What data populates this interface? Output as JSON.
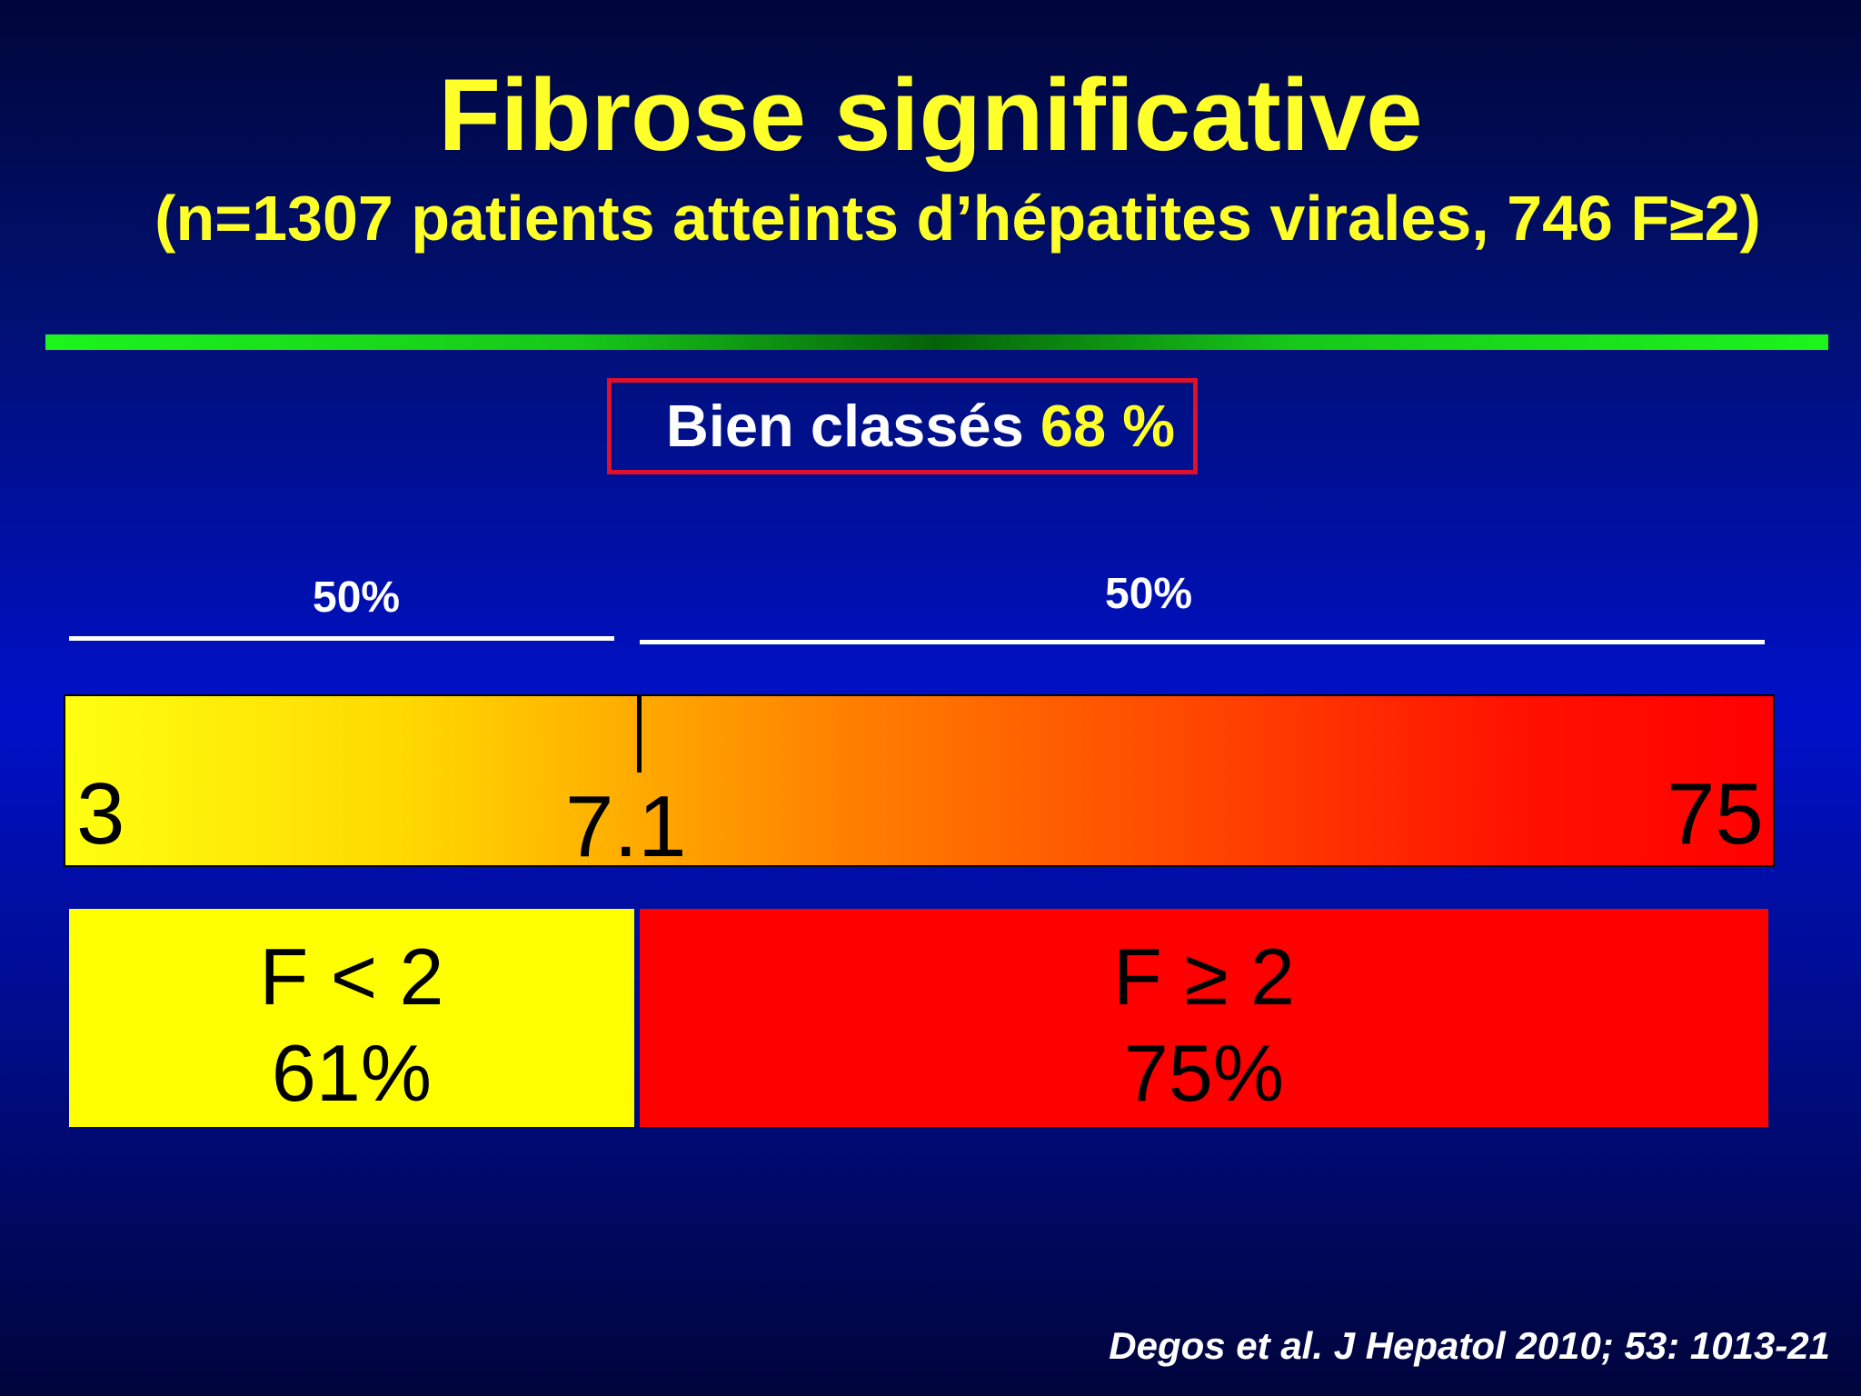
{
  "slide": {
    "title": "Fibrose significative",
    "subtitle": "(n=1307 patients atteints d’hépatites virales, 746 F≥2)",
    "classified": {
      "label": "Bien classés",
      "value": "68 %"
    },
    "split_labels": [
      "50%",
      "50%"
    ],
    "scale": {
      "min": "3",
      "cutoff": "7.1",
      "max": "75"
    },
    "groups": [
      {
        "label": "F < 2",
        "percent": "61%",
        "color": "#ffff00"
      },
      {
        "label": "F ≥ 2",
        "percent": "75%",
        "color": "#ff0000"
      }
    ],
    "citation": "Degos et al. J Hepatol 2010; 53: 1013-21"
  },
  "colors": {
    "title": "#ffff29",
    "background": "#0010c8",
    "divider": "#1cf51c",
    "box_border": "#e0102a"
  }
}
